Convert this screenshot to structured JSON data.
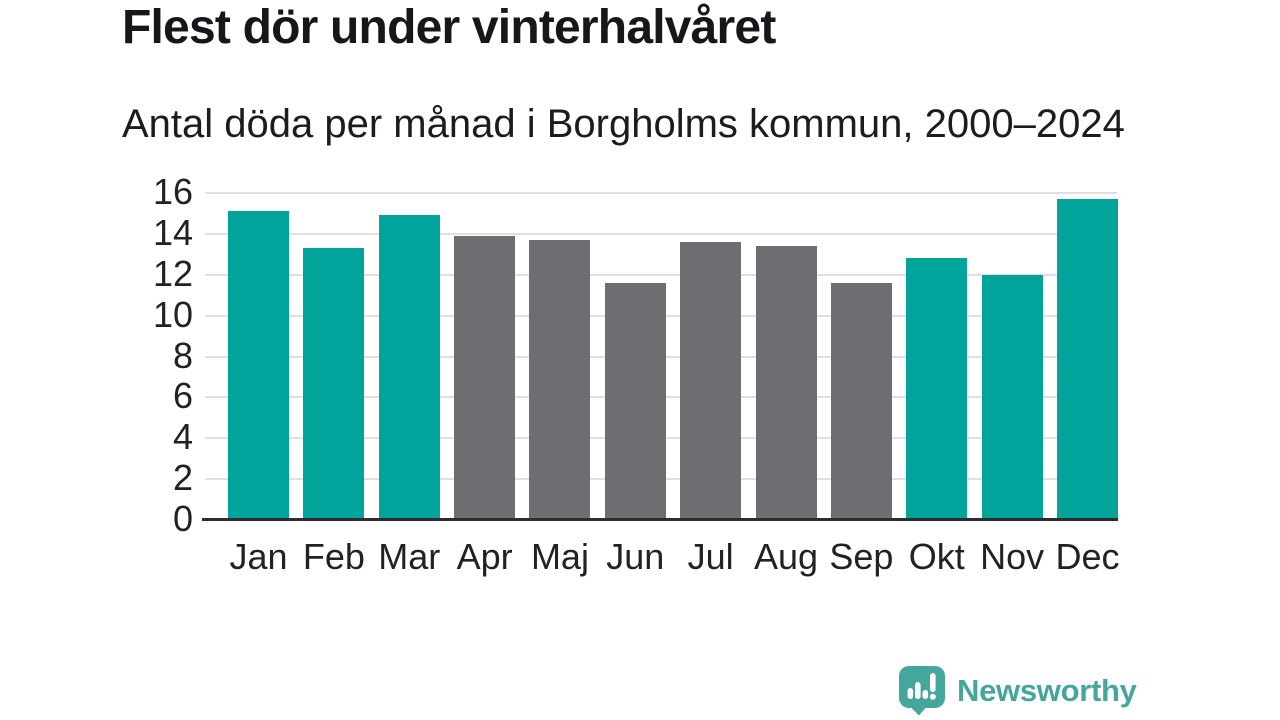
{
  "header": {
    "title": "Flest dör under vinterhalvåret",
    "subtitle": "Antal döda per månad i Borgholms kommun, 2000–2024"
  },
  "chart_data": {
    "type": "bar",
    "title": "Flest dör under vinterhalvåret",
    "subtitle": "Antal döda per månad i Borgholms kommun, 2000–2024",
    "categories": [
      "Jan",
      "Feb",
      "Mar",
      "Apr",
      "Maj",
      "Jun",
      "Jul",
      "Aug",
      "Sep",
      "Okt",
      "Nov",
      "Dec"
    ],
    "values": [
      15.1,
      13.3,
      14.9,
      13.9,
      13.7,
      11.6,
      13.6,
      13.4,
      11.6,
      12.8,
      12.0,
      15.7
    ],
    "bar_colors": [
      "#00a49a",
      "#00a49a",
      "#00a49a",
      "#6e6e72",
      "#6e6e72",
      "#6e6e72",
      "#6e6e72",
      "#6e6e72",
      "#6e6e72",
      "#00a49a",
      "#00a49a",
      "#00a49a"
    ],
    "palette": {
      "winter_months": "#00a49a",
      "summer_months": "#6e6e72"
    },
    "xlabel": "",
    "ylabel": "",
    "ylim": [
      0,
      16
    ],
    "yticks": [
      0,
      2,
      4,
      6,
      8,
      10,
      12,
      14,
      16
    ],
    "grid": "horizontal",
    "legend": "none",
    "axis_color": "#2d2d2d",
    "gridline_color": "#e0e0e0"
  },
  "footer": {
    "brand": "Newsworthy",
    "brand_color": "#45a69c",
    "logo_icon": "newsworthy-speech-bubble-bar-chart-icon"
  }
}
